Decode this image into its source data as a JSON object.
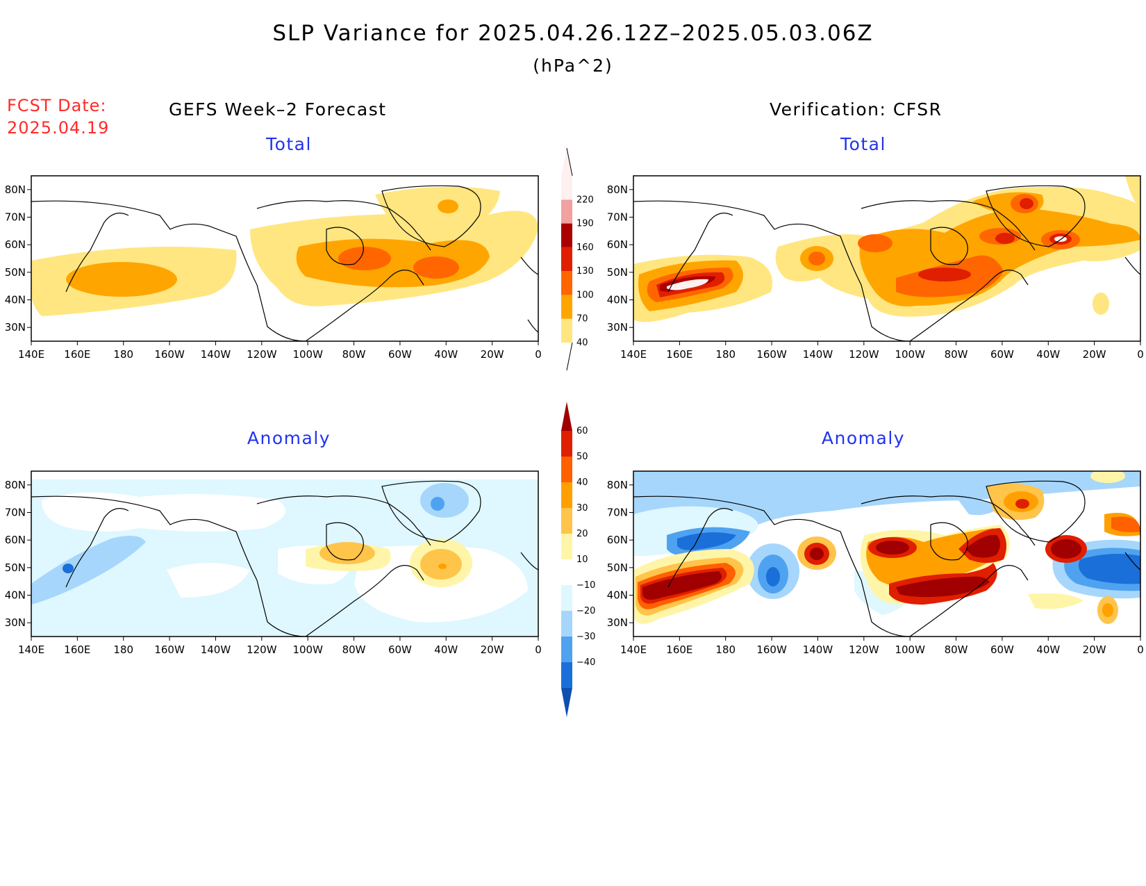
{
  "title": "SLP Variance for 2025.04.26.12Z–2025.05.03.06Z",
  "units": "(hPa^2)",
  "forecast_date": {
    "label": "FCST Date:",
    "value": "2025.04.19"
  },
  "left_heading": "GEFS Week–2 Forecast",
  "right_heading": "Verification: CFSR",
  "panels": {
    "top_left": {
      "subtitle": "Total"
    },
    "top_right": {
      "subtitle": "Total"
    },
    "bottom_left": {
      "subtitle": "Anomaly"
    },
    "bottom_right": {
      "subtitle": "Anomaly"
    }
  },
  "axes": {
    "lon_labels": [
      "140E",
      "160E",
      "180",
      "160W",
      "140W",
      "120W",
      "100W",
      "80W",
      "60W",
      "40W",
      "20W",
      "0"
    ],
    "lat_labels": [
      "30N",
      "40N",
      "50N",
      "60N",
      "70N",
      "80N"
    ]
  },
  "colorbars": {
    "total": {
      "levels": [
        "40",
        "70",
        "100",
        "130",
        "160",
        "190",
        "220"
      ],
      "colors": [
        "#ffe680",
        "#ffa500",
        "#ff6600",
        "#e01e00",
        "#aa0000",
        "#f2a0a0",
        "#fff0f0"
      ]
    },
    "anomaly": {
      "levels": [
        "60",
        "50",
        "40",
        "30",
        "20",
        "10",
        "−10",
        "−20",
        "−30",
        "−40"
      ],
      "colors": [
        "#a00000",
        "#e01e00",
        "#ff6000",
        "#ffa000",
        "#ffc44a",
        "#fff5a8",
        "#ffffff",
        "#dff7ff",
        "#a6d6fb",
        "#4fa2f0",
        "#1b6fd8",
        "#0f4fb0"
      ]
    }
  },
  "map_colors": {
    "land_outline": "#000000",
    "total_40_70": "#ffe680",
    "total_70_100": "#ffa500",
    "total_100_130": "#ff6600",
    "total_130_160": "#e01e00",
    "total_160_190": "#aa0000",
    "total_190_220": "#f2a0a0",
    "total_above_220": "#fff0f0"
  }
}
